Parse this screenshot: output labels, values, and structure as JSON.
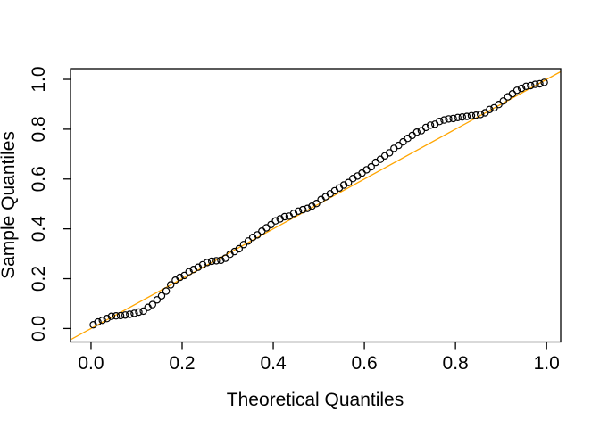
{
  "figure": {
    "background": "#ffffff",
    "plot_border_color": "#000000"
  },
  "chart_data": {
    "type": "scatter",
    "subtype": "qq-plot",
    "title": "",
    "xlabel": "Theoretical Quantiles",
    "ylabel": "Sample Quantiles",
    "x_ticks": [
      0.0,
      0.2,
      0.4,
      0.6,
      0.8,
      1.0
    ],
    "y_ticks": [
      0.0,
      0.2,
      0.4,
      0.6,
      0.8,
      1.0
    ],
    "x_tick_labels": [
      "0.0",
      "0.2",
      "0.4",
      "0.6",
      "0.8",
      "1.0"
    ],
    "y_tick_labels": [
      "0.0",
      "0.2",
      "0.4",
      "0.6",
      "0.8",
      "1.0"
    ],
    "xlim": [
      -0.045,
      1.031
    ],
    "ylim": [
      -0.054,
      1.043
    ],
    "grid": false,
    "legend": null,
    "reference_line": {
      "kind": "identity",
      "intercept": 0,
      "slope": 1,
      "color": "#FFA500",
      "width": 1.3
    },
    "points": {
      "marker": "open-circle",
      "stroke": "#000000",
      "fill": "none",
      "radius": 3.6,
      "stroke_width": 1.2,
      "data": [
        [
          0.005,
          0.015
        ],
        [
          0.015,
          0.026
        ],
        [
          0.025,
          0.033
        ],
        [
          0.035,
          0.04
        ],
        [
          0.045,
          0.049
        ],
        [
          0.055,
          0.051
        ],
        [
          0.065,
          0.052
        ],
        [
          0.075,
          0.054
        ],
        [
          0.085,
          0.057
        ],
        [
          0.095,
          0.061
        ],
        [
          0.105,
          0.066
        ],
        [
          0.115,
          0.07
        ],
        [
          0.125,
          0.085
        ],
        [
          0.135,
          0.096
        ],
        [
          0.145,
          0.115
        ],
        [
          0.155,
          0.131
        ],
        [
          0.165,
          0.15
        ],
        [
          0.175,
          0.175
        ],
        [
          0.185,
          0.194
        ],
        [
          0.195,
          0.205
        ],
        [
          0.205,
          0.213
        ],
        [
          0.215,
          0.228
        ],
        [
          0.225,
          0.237
        ],
        [
          0.235,
          0.246
        ],
        [
          0.245,
          0.256
        ],
        [
          0.255,
          0.265
        ],
        [
          0.265,
          0.27
        ],
        [
          0.275,
          0.272
        ],
        [
          0.285,
          0.274
        ],
        [
          0.295,
          0.282
        ],
        [
          0.305,
          0.298
        ],
        [
          0.315,
          0.309
        ],
        [
          0.325,
          0.32
        ],
        [
          0.335,
          0.337
        ],
        [
          0.345,
          0.351
        ],
        [
          0.355,
          0.366
        ],
        [
          0.365,
          0.376
        ],
        [
          0.375,
          0.391
        ],
        [
          0.385,
          0.404
        ],
        [
          0.395,
          0.417
        ],
        [
          0.405,
          0.432
        ],
        [
          0.415,
          0.44
        ],
        [
          0.425,
          0.449
        ],
        [
          0.435,
          0.451
        ],
        [
          0.445,
          0.462
        ],
        [
          0.455,
          0.471
        ],
        [
          0.465,
          0.477
        ],
        [
          0.475,
          0.482
        ],
        [
          0.485,
          0.491
        ],
        [
          0.495,
          0.502
        ],
        [
          0.505,
          0.518
        ],
        [
          0.515,
          0.529
        ],
        [
          0.525,
          0.541
        ],
        [
          0.535,
          0.553
        ],
        [
          0.545,
          0.564
        ],
        [
          0.555,
          0.576
        ],
        [
          0.565,
          0.586
        ],
        [
          0.575,
          0.602
        ],
        [
          0.585,
          0.612
        ],
        [
          0.595,
          0.624
        ],
        [
          0.605,
          0.637
        ],
        [
          0.615,
          0.649
        ],
        [
          0.625,
          0.667
        ],
        [
          0.635,
          0.679
        ],
        [
          0.645,
          0.693
        ],
        [
          0.655,
          0.705
        ],
        [
          0.665,
          0.723
        ],
        [
          0.675,
          0.735
        ],
        [
          0.685,
          0.749
        ],
        [
          0.695,
          0.763
        ],
        [
          0.705,
          0.775
        ],
        [
          0.715,
          0.788
        ],
        [
          0.725,
          0.794
        ],
        [
          0.735,
          0.807
        ],
        [
          0.745,
          0.816
        ],
        [
          0.755,
          0.82
        ],
        [
          0.765,
          0.831
        ],
        [
          0.775,
          0.837
        ],
        [
          0.785,
          0.841
        ],
        [
          0.795,
          0.843
        ],
        [
          0.805,
          0.847
        ],
        [
          0.815,
          0.849
        ],
        [
          0.825,
          0.851
        ],
        [
          0.835,
          0.854
        ],
        [
          0.845,
          0.856
        ],
        [
          0.855,
          0.859
        ],
        [
          0.865,
          0.866
        ],
        [
          0.875,
          0.879
        ],
        [
          0.885,
          0.886
        ],
        [
          0.895,
          0.899
        ],
        [
          0.905,
          0.913
        ],
        [
          0.915,
          0.93
        ],
        [
          0.925,
          0.942
        ],
        [
          0.935,
          0.956
        ],
        [
          0.945,
          0.964
        ],
        [
          0.955,
          0.972
        ],
        [
          0.965,
          0.975
        ],
        [
          0.975,
          0.98
        ],
        [
          0.985,
          0.982
        ],
        [
          0.995,
          0.988
        ]
      ]
    }
  }
}
